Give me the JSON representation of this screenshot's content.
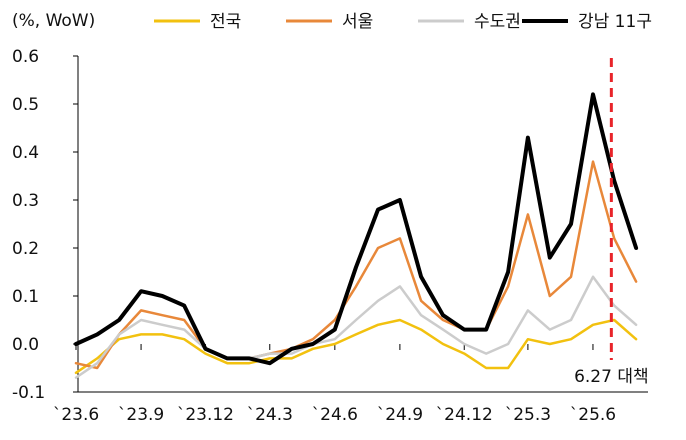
{
  "chart_data": {
    "type": "line",
    "unit_label": "(%, WoW)",
    "ylim": [
      -0.1,
      0.6
    ],
    "y_ticks": [
      -0.1,
      0.0,
      0.1,
      0.2,
      0.3,
      0.4,
      0.5,
      0.6
    ],
    "y_tick_labels": [
      "-0.1",
      "0.0",
      "0.1",
      "0.2",
      "0.3",
      "0.4",
      "0.5",
      "0.6"
    ],
    "x_tick_labels": [
      "`23.6",
      "`23.9",
      "`23.12",
      "`24.3",
      "`24.6",
      "`24.9",
      "`24.12",
      "`25.3",
      "`25.6"
    ],
    "x_tick_months": [
      "2023-06",
      "2023-09",
      "2023-12",
      "2024-03",
      "2024-06",
      "2024-09",
      "2024-12",
      "2025-03",
      "2025-06"
    ],
    "legend_position": "top",
    "grid": false,
    "annotation": {
      "label": "6.27 대책",
      "date": "2025-06-27",
      "color": "#e8242a"
    },
    "series": [
      {
        "name": "전국",
        "color": "#f2c10f",
        "points": [
          [
            "2023-06",
            -0.06
          ],
          [
            "2023-07",
            -0.03
          ],
          [
            "2023-08",
            0.01
          ],
          [
            "2023-09",
            0.02
          ],
          [
            "2023-10",
            0.02
          ],
          [
            "2023-11",
            0.01
          ],
          [
            "2023-12",
            -0.02
          ],
          [
            "2024-01",
            -0.04
          ],
          [
            "2024-02",
            -0.04
          ],
          [
            "2024-03",
            -0.03
          ],
          [
            "2024-04",
            -0.03
          ],
          [
            "2024-05",
            -0.01
          ],
          [
            "2024-06",
            0.0
          ],
          [
            "2024-07",
            0.02
          ],
          [
            "2024-08",
            0.04
          ],
          [
            "2024-09",
            0.05
          ],
          [
            "2024-10",
            0.03
          ],
          [
            "2024-11",
            0.0
          ],
          [
            "2024-12",
            -0.02
          ],
          [
            "2025-01",
            -0.05
          ],
          [
            "2025-02",
            -0.05
          ],
          [
            "2025-03",
            0.01
          ],
          [
            "2025-04",
            0.0
          ],
          [
            "2025-05",
            0.01
          ],
          [
            "2025-06",
            0.04
          ],
          [
            "2025-07",
            0.05
          ],
          [
            "2025-08",
            0.01
          ]
        ]
      },
      {
        "name": "서울",
        "color": "#e8883a",
        "points": [
          [
            "2023-06",
            -0.04
          ],
          [
            "2023-07",
            -0.05
          ],
          [
            "2023-08",
            0.02
          ],
          [
            "2023-09",
            0.07
          ],
          [
            "2023-10",
            0.06
          ],
          [
            "2023-11",
            0.05
          ],
          [
            "2023-12",
            -0.01
          ],
          [
            "2024-01",
            -0.03
          ],
          [
            "2024-02",
            -0.03
          ],
          [
            "2024-03",
            -0.02
          ],
          [
            "2024-04",
            -0.01
          ],
          [
            "2024-05",
            0.01
          ],
          [
            "2024-06",
            0.05
          ],
          [
            "2024-07",
            0.12
          ],
          [
            "2024-08",
            0.2
          ],
          [
            "2024-09",
            0.22
          ],
          [
            "2024-10",
            0.09
          ],
          [
            "2024-11",
            0.05
          ],
          [
            "2024-12",
            0.03
          ],
          [
            "2025-01",
            0.03
          ],
          [
            "2025-02",
            0.12
          ],
          [
            "2025-03",
            0.27
          ],
          [
            "2025-04",
            0.1
          ],
          [
            "2025-05",
            0.14
          ],
          [
            "2025-06",
            0.38
          ],
          [
            "2025-07",
            0.22
          ],
          [
            "2025-08",
            0.13
          ]
        ]
      },
      {
        "name": "수도권",
        "color": "#cccccc",
        "points": [
          [
            "2023-06",
            -0.07
          ],
          [
            "2023-07",
            -0.04
          ],
          [
            "2023-08",
            0.02
          ],
          [
            "2023-09",
            0.05
          ],
          [
            "2023-10",
            0.04
          ],
          [
            "2023-11",
            0.03
          ],
          [
            "2023-12",
            -0.01
          ],
          [
            "2024-01",
            -0.03
          ],
          [
            "2024-02",
            -0.03
          ],
          [
            "2024-03",
            -0.02
          ],
          [
            "2024-04",
            -0.02
          ],
          [
            "2024-05",
            0.0
          ],
          [
            "2024-06",
            0.01
          ],
          [
            "2024-07",
            0.05
          ],
          [
            "2024-08",
            0.09
          ],
          [
            "2024-09",
            0.12
          ],
          [
            "2024-10",
            0.06
          ],
          [
            "2024-11",
            0.03
          ],
          [
            "2024-12",
            0.0
          ],
          [
            "2025-01",
            -0.02
          ],
          [
            "2025-02",
            0.0
          ],
          [
            "2025-03",
            0.07
          ],
          [
            "2025-04",
            0.03
          ],
          [
            "2025-05",
            0.05
          ],
          [
            "2025-06",
            0.14
          ],
          [
            "2025-07",
            0.08
          ],
          [
            "2025-08",
            0.04
          ]
        ]
      },
      {
        "name": "강남 11구",
        "color": "#000000",
        "points": [
          [
            "2023-06",
            0.0
          ],
          [
            "2023-07",
            0.02
          ],
          [
            "2023-08",
            0.05
          ],
          [
            "2023-09",
            0.11
          ],
          [
            "2023-10",
            0.1
          ],
          [
            "2023-11",
            0.08
          ],
          [
            "2023-12",
            -0.01
          ],
          [
            "2024-01",
            -0.03
          ],
          [
            "2024-02",
            -0.03
          ],
          [
            "2024-03",
            -0.04
          ],
          [
            "2024-04",
            -0.01
          ],
          [
            "2024-05",
            0.0
          ],
          [
            "2024-06",
            0.03
          ],
          [
            "2024-07",
            0.16
          ],
          [
            "2024-08",
            0.28
          ],
          [
            "2024-09",
            0.3
          ],
          [
            "2024-10",
            0.14
          ],
          [
            "2024-11",
            0.06
          ],
          [
            "2024-12",
            0.03
          ],
          [
            "2025-01",
            0.03
          ],
          [
            "2025-02",
            0.15
          ],
          [
            "2025-03",
            0.43
          ],
          [
            "2025-04",
            0.18
          ],
          [
            "2025-05",
            0.25
          ],
          [
            "2025-06",
            0.52
          ],
          [
            "2025-07",
            0.34
          ],
          [
            "2025-08",
            0.2
          ]
        ]
      }
    ]
  }
}
